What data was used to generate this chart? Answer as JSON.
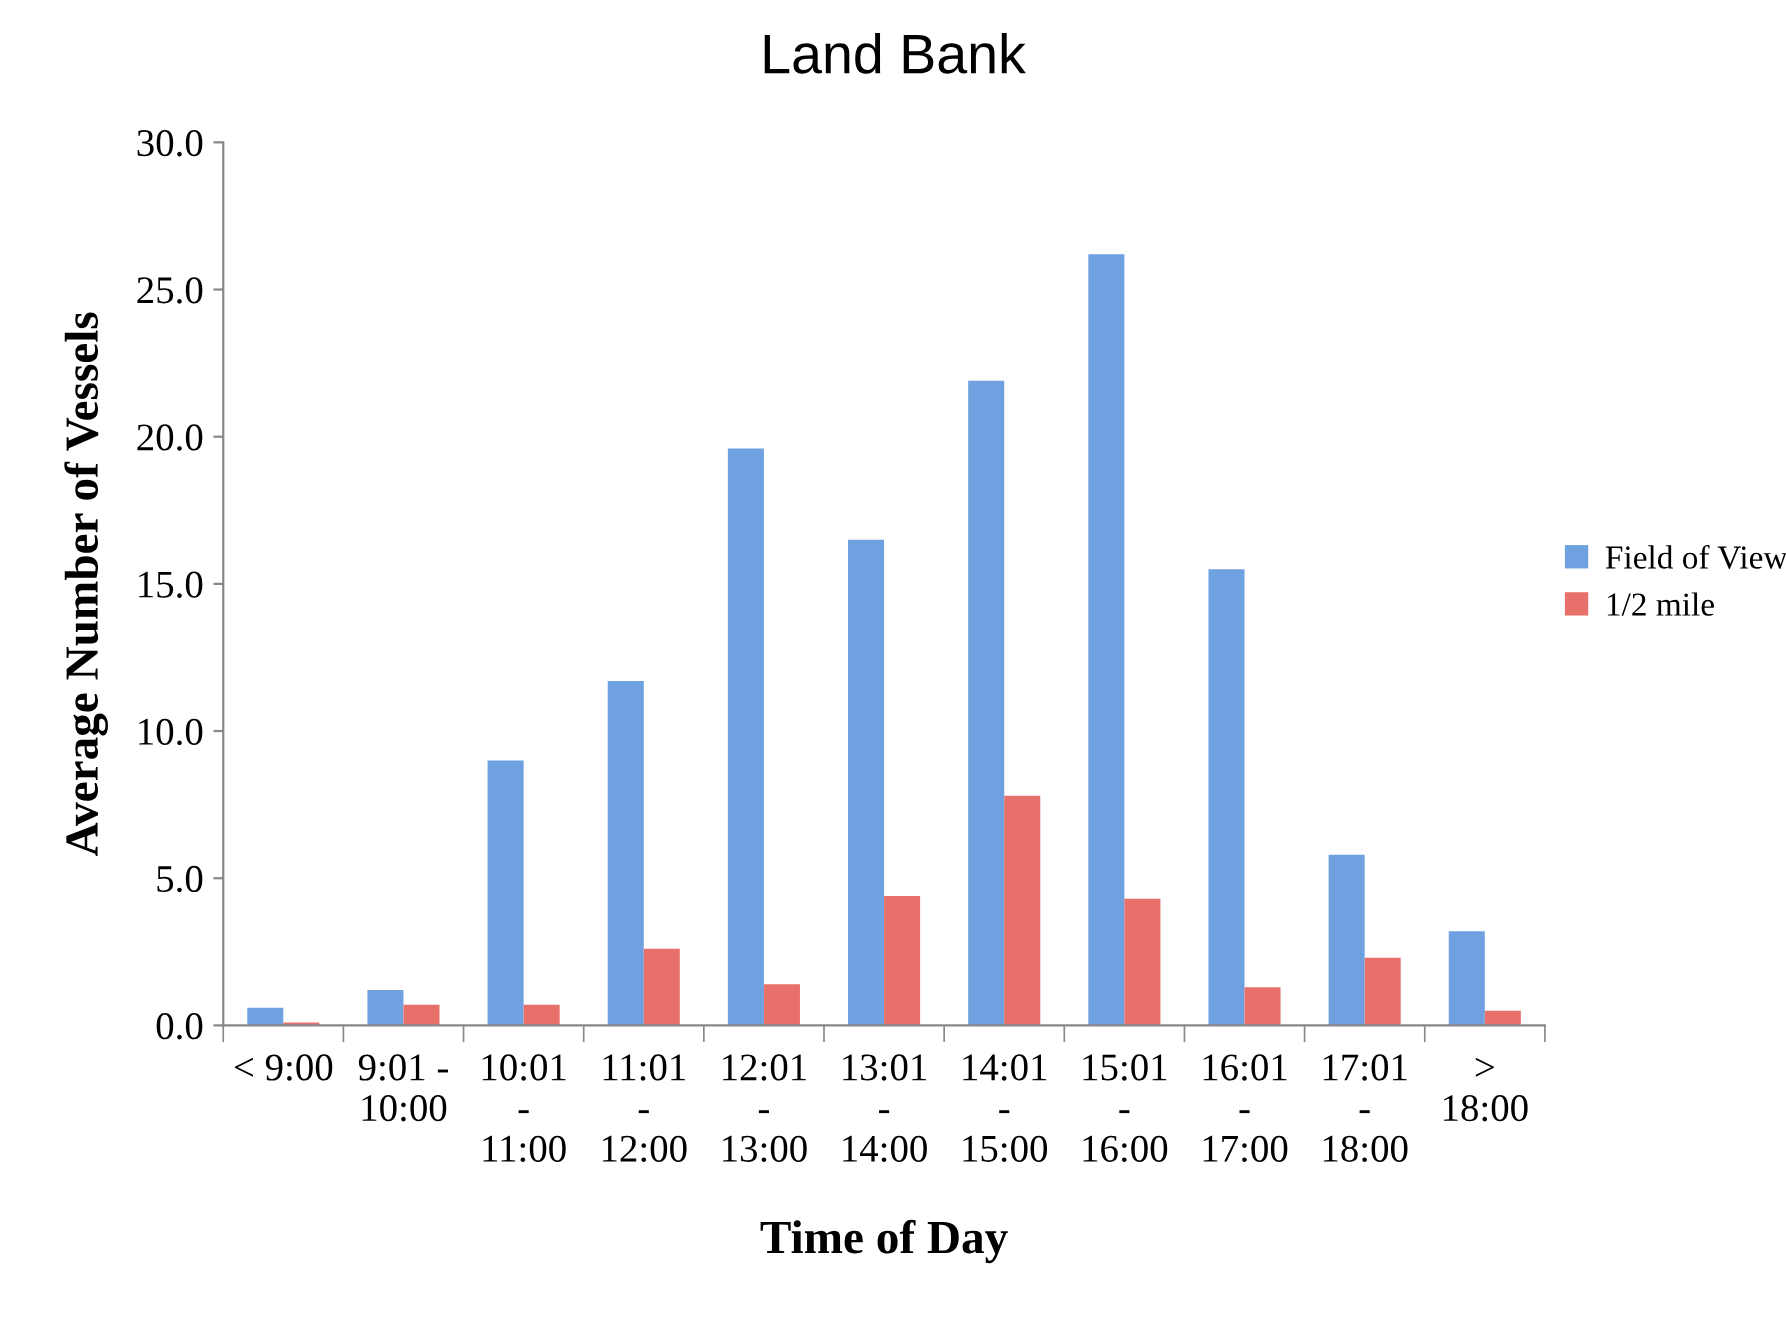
{
  "chart_data": {
    "type": "bar",
    "title": "Land Bank",
    "xlabel": "Time of Day",
    "ylabel": "Average Number of Vessels",
    "categories": [
      "< 9:00",
      "9:01 -\n10:00",
      "10:01\n-\n11:00",
      "11:01\n-\n12:00",
      "12:01\n-\n13:00",
      "13:01\n-\n14:00",
      "14:01\n-\n15:00",
      "15:01\n-\n16:00",
      "16:01\n-\n17:00",
      "17:01\n-\n18:00",
      ">\n18:00"
    ],
    "series": [
      {
        "name": "Field of View",
        "color": "#6fa0e0",
        "values": [
          0.6,
          1.2,
          9.0,
          11.7,
          19.6,
          16.5,
          21.9,
          26.2,
          15.5,
          5.8,
          3.2
        ]
      },
      {
        "name": "1/2 mile",
        "color": "#e8706a",
        "values": [
          0.1,
          0.7,
          0.7,
          2.6,
          1.4,
          4.4,
          7.8,
          4.3,
          1.3,
          2.3,
          0.5
        ]
      }
    ],
    "ylim": [
      0,
      30
    ],
    "yticks": [
      {
        "value": 0,
        "label": "0.0"
      },
      {
        "value": 5,
        "label": "5.0"
      },
      {
        "value": 10,
        "label": "10.0"
      },
      {
        "value": 15,
        "label": "15.0"
      },
      {
        "value": 20,
        "label": "20.0"
      },
      {
        "value": 25,
        "label": "25.0"
      },
      {
        "value": 30,
        "label": "30.0"
      }
    ],
    "grid": false,
    "legend": "right"
  }
}
